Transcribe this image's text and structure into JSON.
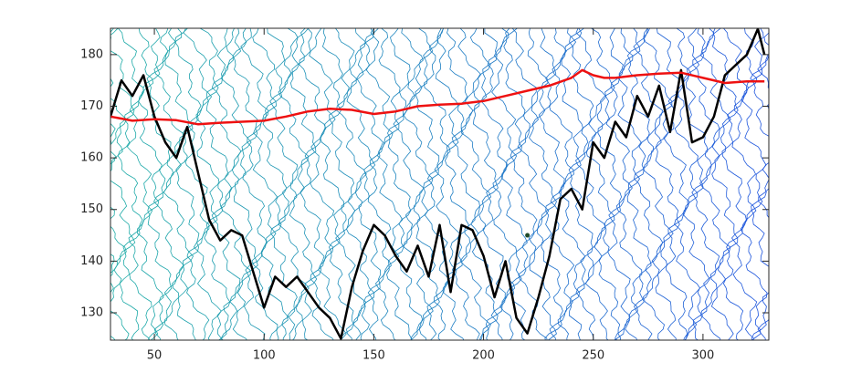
{
  "chart_data": {
    "type": "line",
    "xlim": [
      30,
      330
    ],
    "ylim": [
      124.7,
      185.1
    ],
    "xticks": [
      50,
      100,
      150,
      200,
      250,
      300
    ],
    "yticks": [
      130,
      140,
      150,
      160,
      170,
      180
    ],
    "series": [
      {
        "color": "#000000",
        "x": [
          30,
          35,
          40,
          45,
          50,
          55,
          60,
          65,
          70,
          75,
          80,
          85,
          90,
          95,
          100,
          105,
          110,
          115,
          120,
          125,
          130,
          135,
          140,
          145,
          150,
          155,
          160,
          165,
          170,
          175,
          180,
          185,
          190,
          195,
          200,
          205,
          210,
          215,
          220,
          225,
          230,
          235,
          240,
          245,
          250,
          255,
          260,
          265,
          270,
          275,
          280,
          285,
          290,
          295,
          300,
          305,
          310,
          315,
          320,
          325,
          328
        ],
        "values": [
          168,
          175,
          172,
          176,
          168,
          163,
          160,
          166,
          157,
          148,
          144,
          146,
          145,
          138,
          131,
          137,
          135,
          137,
          134,
          131,
          129,
          125,
          135,
          142,
          147,
          145,
          141,
          138,
          143,
          137,
          147,
          134,
          147,
          146,
          141,
          133,
          140,
          129,
          126,
          133,
          141,
          152,
          154,
          150,
          163,
          160,
          167,
          164,
          172,
          168,
          174,
          165,
          177,
          163,
          164,
          168,
          176,
          178,
          180,
          185,
          180
        ]
      },
      {
        "color": "#ee1111",
        "x": [
          30,
          40,
          50,
          60,
          70,
          80,
          90,
          100,
          110,
          120,
          130,
          140,
          150,
          160,
          170,
          180,
          190,
          200,
          210,
          220,
          230,
          240,
          245,
          250,
          255,
          260,
          270,
          280,
          290,
          300,
          310,
          320,
          328
        ],
        "values": [
          168,
          167.2,
          167.5,
          167.3,
          166.5,
          166.8,
          167,
          167.2,
          168,
          169,
          169.5,
          169.3,
          168.5,
          169,
          170,
          170.3,
          170.5,
          171,
          172,
          173,
          174,
          175.5,
          177,
          176,
          175.5,
          175.5,
          176,
          176.3,
          176.5,
          175.5,
          174.5,
          174.8,
          174.8
        ]
      }
    ],
    "marker": {
      "x": 220,
      "y": 145,
      "color": "#1f4a2a"
    }
  }
}
